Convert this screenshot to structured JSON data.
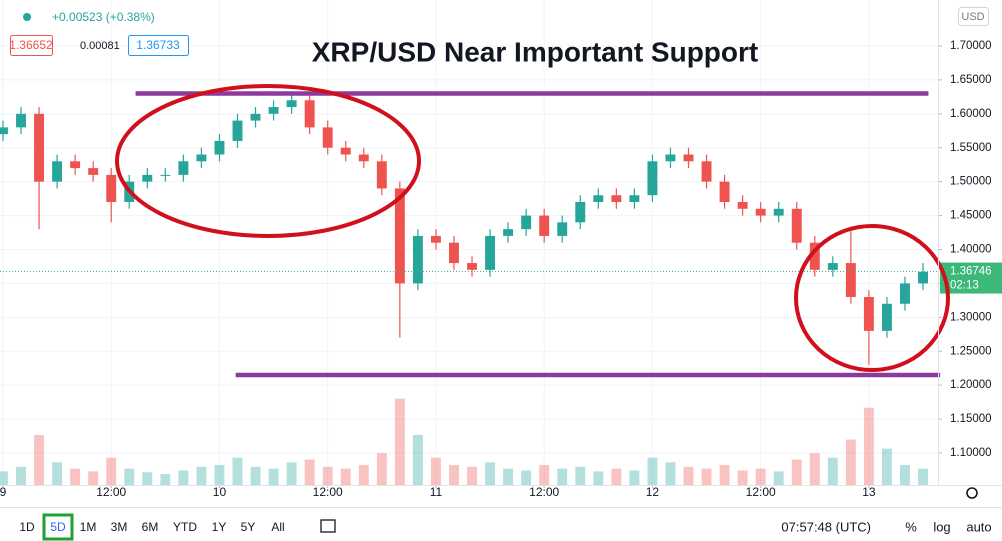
{
  "chart_data": {
    "type": "candlestick",
    "title": "XRP/USD Near Important Support",
    "quote": {
      "change": "+0.00523 (+0.38%)",
      "bid": "1.36652",
      "spread": "0.00081",
      "ask": "1.36733"
    },
    "currency": "USD",
    "x": [
      0,
      2,
      4,
      6,
      8,
      10,
      12,
      14,
      16,
      18,
      20,
      22,
      24,
      26,
      28,
      30,
      32,
      34,
      36,
      38,
      40,
      42,
      44,
      46,
      48,
      50,
      52,
      54,
      56,
      58,
      60,
      62,
      64,
      66,
      68,
      70,
      72,
      74,
      76,
      78,
      80,
      82,
      84,
      86,
      88,
      90,
      92,
      94,
      96,
      98,
      100,
      102
    ],
    "open": [
      1.57,
      1.58,
      1.6,
      1.5,
      1.53,
      1.52,
      1.51,
      1.47,
      1.5,
      1.51,
      1.51,
      1.53,
      1.54,
      1.56,
      1.59,
      1.6,
      1.61,
      1.62,
      1.58,
      1.55,
      1.54,
      1.53,
      1.49,
      1.35,
      1.42,
      1.41,
      1.38,
      1.37,
      1.42,
      1.43,
      1.45,
      1.42,
      1.44,
      1.47,
      1.48,
      1.47,
      1.48,
      1.53,
      1.54,
      1.53,
      1.5,
      1.47,
      1.46,
      1.45,
      1.46,
      1.41,
      1.37,
      1.38,
      1.33,
      1.28,
      1.32,
      1.35
    ],
    "high": [
      1.59,
      1.61,
      1.61,
      1.54,
      1.54,
      1.53,
      1.52,
      1.51,
      1.52,
      1.52,
      1.54,
      1.55,
      1.57,
      1.6,
      1.61,
      1.62,
      1.63,
      1.63,
      1.59,
      1.56,
      1.55,
      1.54,
      1.5,
      1.43,
      1.43,
      1.42,
      1.39,
      1.43,
      1.44,
      1.46,
      1.46,
      1.45,
      1.48,
      1.49,
      1.49,
      1.49,
      1.54,
      1.55,
      1.55,
      1.54,
      1.51,
      1.48,
      1.47,
      1.47,
      1.47,
      1.42,
      1.39,
      1.43,
      1.34,
      1.33,
      1.36,
      1.38
    ],
    "low": [
      1.56,
      1.57,
      1.43,
      1.49,
      1.51,
      1.5,
      1.44,
      1.46,
      1.49,
      1.5,
      1.5,
      1.52,
      1.53,
      1.55,
      1.58,
      1.59,
      1.6,
      1.57,
      1.54,
      1.53,
      1.52,
      1.48,
      1.27,
      1.34,
      1.4,
      1.37,
      1.36,
      1.36,
      1.41,
      1.42,
      1.41,
      1.41,
      1.43,
      1.46,
      1.46,
      1.46,
      1.47,
      1.52,
      1.52,
      1.49,
      1.46,
      1.45,
      1.44,
      1.44,
      1.4,
      1.36,
      1.36,
      1.32,
      1.23,
      1.27,
      1.31,
      1.34
    ],
    "close": [
      1.58,
      1.6,
      1.5,
      1.53,
      1.52,
      1.51,
      1.47,
      1.5,
      1.51,
      1.51,
      1.53,
      1.54,
      1.56,
      1.59,
      1.6,
      1.61,
      1.62,
      1.58,
      1.55,
      1.54,
      1.53,
      1.49,
      1.35,
      1.42,
      1.41,
      1.38,
      1.37,
      1.42,
      1.43,
      1.45,
      1.42,
      1.44,
      1.47,
      1.48,
      1.47,
      1.48,
      1.53,
      1.54,
      1.53,
      1.5,
      1.47,
      1.46,
      1.45,
      1.46,
      1.41,
      1.37,
      1.38,
      1.33,
      1.28,
      1.32,
      1.35,
      1.367
    ],
    "volume": [
      15,
      20,
      55,
      25,
      18,
      15,
      30,
      18,
      14,
      12,
      16,
      20,
      22,
      30,
      20,
      18,
      25,
      28,
      20,
      18,
      22,
      35,
      95,
      55,
      30,
      22,
      20,
      25,
      18,
      16,
      22,
      18,
      20,
      15,
      18,
      16,
      30,
      25,
      20,
      18,
      22,
      16,
      18,
      15,
      28,
      35,
      30,
      50,
      85,
      40,
      22,
      18
    ],
    "volume_lim": [
      0,
      110
    ],
    "up_color": "#26a69a",
    "down_color": "#ef5350",
    "xlim": [
      -0.33,
      103.66
    ],
    "ylim": [
      1.0528,
      1.7678
    ],
    "xticks": [
      {
        "value": 0,
        "label": "9"
      },
      {
        "value": 12,
        "label": "12:00"
      },
      {
        "value": 24,
        "label": "10"
      },
      {
        "value": 36,
        "label": "12:00"
      },
      {
        "value": 48,
        "label": "11"
      },
      {
        "value": 60,
        "label": "12:00"
      },
      {
        "value": 72,
        "label": "12"
      },
      {
        "value": 84,
        "label": "12:00"
      },
      {
        "value": 96,
        "label": "13"
      }
    ],
    "yticks": [
      {
        "value": 1.1,
        "label": "1.10000"
      },
      {
        "value": 1.15,
        "label": "1.15000"
      },
      {
        "value": 1.2,
        "label": "1.20000"
      },
      {
        "value": 1.25,
        "label": "1.25000"
      },
      {
        "value": 1.3,
        "label": "1.30000"
      },
      {
        "value": 1.35,
        "label": "1.35000"
      },
      {
        "value": 1.4,
        "label": "1.40000"
      },
      {
        "value": 1.45,
        "label": "1.45000"
      },
      {
        "value": 1.5,
        "label": "1.50000"
      },
      {
        "value": 1.55,
        "label": "1.55000"
      },
      {
        "value": 1.6,
        "label": "1.60000"
      },
      {
        "value": 1.65,
        "label": "1.65000"
      },
      {
        "value": 1.7,
        "label": "1.70000"
      }
    ],
    "grid": true,
    "last_price": 1.36746,
    "countdown": "02:13",
    "last_color": "#3cb878",
    "hlines": [
      {
        "value": 1.63,
        "x": [
          14.7,
          102.6
        ]
      },
      {
        "value": 1.215,
        "x": [
          25.8,
          103.9
        ]
      }
    ],
    "hline_color": "#8e3a9d"
  },
  "toolbar": {
    "ranges": [
      "1D",
      "5D",
      "1M",
      "3M",
      "6M",
      "YTD",
      "1Y",
      "5Y",
      "All"
    ],
    "selected": 1,
    "time": "07:57:48 (UTC)",
    "options": [
      "%",
      "log",
      "auto"
    ]
  }
}
